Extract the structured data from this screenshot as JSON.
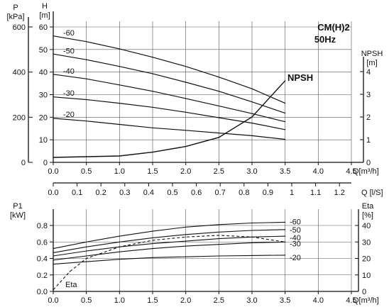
{
  "chart_data": [
    {
      "type": "line",
      "title": "CM(H)2",
      "subtitle": "50Hz",
      "xlabel": "Q[m³/h]",
      "xlim": [
        0,
        4.5
      ],
      "x_ticks": [
        "0.0",
        "0.5",
        "1.0",
        "1.5",
        "2.0",
        "2.5",
        "3.0",
        "3.5",
        "4.0",
        "4.5"
      ],
      "secondary_x": {
        "xlabel": "Q [l/S]",
        "xlim": [
          0,
          1.25
        ],
        "ticks": [
          "0.0",
          "0.1",
          "0.2",
          "0.3",
          "0.4",
          "0.5",
          "0.6",
          "0.7",
          "0.8",
          "0.9",
          "1",
          "1.1",
          "1.2"
        ]
      },
      "y_left_inner": {
        "label": "H",
        "unit": "[m]",
        "ylim": [
          0,
          60
        ],
        "ticks": [
          "0",
          "10",
          "20",
          "30",
          "40",
          "50",
          "60"
        ]
      },
      "y_left_outer": {
        "label": "P",
        "unit": "[kPa]",
        "ylim": [
          0,
          600
        ],
        "ticks": [
          "0",
          "200",
          "400",
          "600"
        ]
      },
      "y_right": {
        "label": "NPSH",
        "unit": "[m]",
        "ylim": [
          0,
          4
        ],
        "ticks": [
          "0",
          "1",
          "2",
          "3",
          "4"
        ]
      },
      "grid": true,
      "series": [
        {
          "name": "-60",
          "axis": "H",
          "x": [
            0,
            0.5,
            1,
            1.5,
            2,
            2.5,
            3,
            3.5
          ],
          "y": [
            56,
            53.5,
            50.3,
            46.6,
            42.5,
            37.8,
            32.6,
            26.2
          ]
        },
        {
          "name": "-50",
          "axis": "H",
          "x": [
            0,
            0.5,
            1,
            1.5,
            2,
            2.5,
            3,
            3.5
          ],
          "y": [
            48,
            45.5,
            42.5,
            39.3,
            35.5,
            31.5,
            26.8,
            21.8
          ]
        },
        {
          "name": "-40",
          "axis": "H",
          "x": [
            0,
            0.5,
            1,
            1.5,
            2,
            2.5,
            3,
            3.5
          ],
          "y": [
            39,
            37,
            34.3,
            31.5,
            28.3,
            25,
            21.6,
            18
          ]
        },
        {
          "name": "-30",
          "axis": "H",
          "x": [
            0,
            0.5,
            1,
            1.5,
            2,
            2.5,
            3,
            3.5
          ],
          "y": [
            29,
            27.8,
            26.2,
            24.4,
            22.2,
            19.8,
            17.4,
            14.5
          ]
        },
        {
          "name": "-20",
          "axis": "H",
          "x": [
            0,
            0.5,
            1,
            1.5,
            2,
            2.5,
            3,
            3.5
          ],
          "y": [
            19.5,
            18.3,
            16.8,
            15.3,
            14.2,
            13,
            11.8,
            10.2
          ]
        },
        {
          "name": "NPSH",
          "axis": "NPSH",
          "x": [
            0,
            0.5,
            1,
            1.5,
            2,
            2.5,
            3,
            3.5
          ],
          "y": [
            0.22,
            0.25,
            0.28,
            0.45,
            0.7,
            1.1,
            2.0,
            3.6
          ]
        }
      ]
    },
    {
      "type": "line",
      "xlabel": "Q[m³/h]",
      "xlim": [
        0,
        4.5
      ],
      "x_ticks": [
        "0.0",
        "0.5",
        "1.0",
        "1.5",
        "2.0",
        "2.5",
        "3.0",
        "3.5",
        "4.0",
        "4.5"
      ],
      "y_left": {
        "label": "P1",
        "unit": "[kW]",
        "ylim": [
          0,
          0.9
        ],
        "ticks": [
          "0.0",
          "0.2",
          "0.4",
          "0.6",
          "0.8"
        ]
      },
      "y_right": {
        "label": "Eta",
        "unit": "[%]",
        "ylim": [
          0,
          45
        ],
        "ticks": [
          "0",
          "10",
          "20",
          "30",
          "40"
        ]
      },
      "grid": true,
      "series": [
        {
          "name": "-60",
          "axis": "P1",
          "x": [
            0,
            0.5,
            1,
            1.5,
            2,
            2.5,
            3,
            3.5
          ],
          "y": [
            0.52,
            0.6,
            0.67,
            0.73,
            0.78,
            0.81,
            0.83,
            0.84
          ]
        },
        {
          "name": "-50",
          "axis": "P1",
          "x": [
            0,
            0.5,
            1,
            1.5,
            2,
            2.5,
            3,
            3.5
          ],
          "y": [
            0.47,
            0.54,
            0.6,
            0.65,
            0.69,
            0.72,
            0.74,
            0.75
          ]
        },
        {
          "name": "-40",
          "axis": "P1",
          "x": [
            0,
            0.5,
            1,
            1.5,
            2,
            2.5,
            3,
            3.5
          ],
          "y": [
            0.43,
            0.49,
            0.54,
            0.58,
            0.61,
            0.64,
            0.66,
            0.67
          ]
        },
        {
          "name": "-30",
          "axis": "P1",
          "x": [
            0,
            0.5,
            1,
            1.5,
            2,
            2.5,
            3,
            3.5
          ],
          "y": [
            0.38,
            0.43,
            0.48,
            0.52,
            0.55,
            0.57,
            0.59,
            0.6
          ]
        },
        {
          "name": "-20",
          "axis": "P1",
          "x": [
            0,
            0.5,
            1,
            1.5,
            2,
            2.5,
            3,
            3.5
          ],
          "y": [
            0.33,
            0.36,
            0.39,
            0.41,
            0.42,
            0.43,
            0.435,
            0.44
          ]
        },
        {
          "name": "Eta",
          "axis": "Eta",
          "x": [
            0,
            0.25,
            0.5,
            1,
            1.5,
            2,
            2.5,
            3,
            3.5
          ],
          "y": [
            1,
            12,
            20,
            27,
            31,
            33,
            34,
            33,
            30
          ]
        }
      ]
    }
  ]
}
